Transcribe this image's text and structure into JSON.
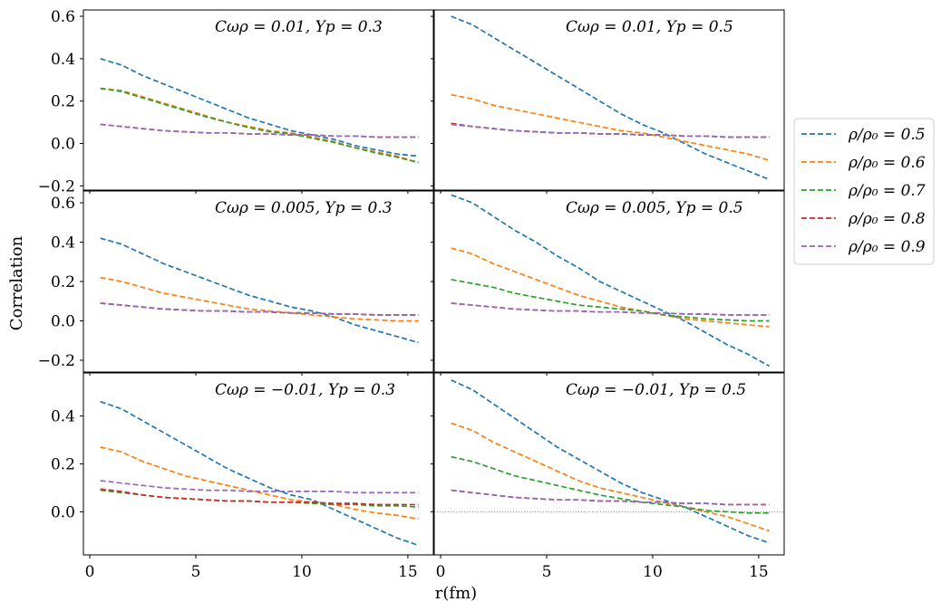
{
  "chart_data": {
    "type": "line",
    "grid_layout": "3 rows x 2 columns, shared axes",
    "xlabel": "r(fm)",
    "ylabel": "Correlation",
    "xlim": [
      -0.3,
      16.2
    ],
    "xticks": [
      0,
      5,
      10,
      15
    ],
    "legend": {
      "placement": "right",
      "entries": [
        {
          "label": "ρ/ρ₀ = 0.5",
          "color": "#1f77b4"
        },
        {
          "label": "ρ/ρ₀ = 0.6",
          "color": "#ff7f0e"
        },
        {
          "label": "ρ/ρ₀ = 0.7",
          "color": "#2ca02c"
        },
        {
          "label": "ρ/ρ₀ = 0.8",
          "color": "#d62728"
        },
        {
          "label": "ρ/ρ₀ = 0.9",
          "color": "#9467bd"
        }
      ]
    },
    "x": [
      0.5,
      1.5,
      2.5,
      3.5,
      4.5,
      5.5,
      6.5,
      7.5,
      8.5,
      9.5,
      10.5,
      11.5,
      12.5,
      13.5,
      14.5,
      15.5
    ],
    "panels": [
      {
        "annotation": "Cωρ = 0.01, Yp = 0.3",
        "ylim": [
          -0.22,
          0.63
        ],
        "yticks": [
          -0.2,
          0.0,
          0.2,
          0.4,
          0.6
        ],
        "series": [
          {
            "name": "ρ/ρ₀ = 0.5",
            "values": [
              0.4,
              0.37,
              0.32,
              0.28,
              0.24,
              0.2,
              0.16,
              0.12,
              0.09,
              0.06,
              0.04,
              0.02,
              -0.01,
              -0.03,
              -0.05,
              -0.06
            ]
          },
          {
            "name": "ρ/ρ₀ = 0.6",
            "values": [
              0.26,
              0.25,
              0.22,
              0.19,
              0.16,
              0.13,
              0.1,
              0.08,
              0.06,
              0.05,
              0.03,
              0.01,
              -0.02,
              -0.04,
              -0.06,
              -0.09
            ]
          },
          {
            "name": "ρ/ρ₀ = 0.7",
            "values": [
              0.26,
              0.245,
              0.215,
              0.185,
              0.155,
              0.125,
              0.1,
              0.075,
              0.055,
              0.045,
              0.025,
              0.005,
              -0.02,
              -0.045,
              -0.065,
              -0.09
            ]
          },
          {
            "name": "ρ/ρ₀ = 0.8",
            "values": [
              0.09,
              0.08,
              0.07,
              0.06,
              0.055,
              0.05,
              0.05,
              0.045,
              0.045,
              0.04,
              0.04,
              0.035,
              0.035,
              0.03,
              0.03,
              0.03
            ]
          },
          {
            "name": "ρ/ρ₀ = 0.9",
            "values": [
              0.09,
              0.08,
              0.07,
              0.06,
              0.055,
              0.05,
              0.05,
              0.045,
              0.045,
              0.04,
              0.04,
              0.035,
              0.035,
              0.03,
              0.03,
              0.03
            ]
          }
        ]
      },
      {
        "annotation": "Cωρ = 0.01, Yp = 0.5",
        "ylim": [
          -0.22,
          0.63
        ],
        "yticks": [
          -0.2,
          0.0,
          0.2,
          0.4,
          0.6
        ],
        "series": [
          {
            "name": "ρ/ρ₀ = 0.5",
            "values": [
              0.6,
              0.56,
              0.5,
              0.44,
              0.38,
              0.32,
              0.26,
              0.2,
              0.14,
              0.09,
              0.05,
              0.0,
              -0.05,
              -0.09,
              -0.13,
              -0.17
            ]
          },
          {
            "name": "ρ/ρ₀ = 0.6",
            "values": [
              0.23,
              0.21,
              0.18,
              0.16,
              0.14,
              0.12,
              0.1,
              0.08,
              0.06,
              0.05,
              0.03,
              0.01,
              -0.01,
              -0.03,
              -0.05,
              -0.08
            ]
          },
          {
            "name": "ρ/ρ₀ = 0.7",
            "values": [
              0.09,
              0.08,
              0.07,
              0.06,
              0.055,
              0.05,
              0.05,
              0.045,
              0.045,
              0.04,
              0.04,
              0.035,
              0.035,
              0.03,
              0.03,
              0.03
            ]
          },
          {
            "name": "ρ/ρ₀ = 0.8",
            "values": [
              0.095,
              0.08,
              0.07,
              0.06,
              0.055,
              0.05,
              0.05,
              0.045,
              0.045,
              0.04,
              0.04,
              0.035,
              0.035,
              0.03,
              0.03,
              0.03
            ]
          },
          {
            "name": "ρ/ρ₀ = 0.9",
            "values": [
              0.09,
              0.08,
              0.07,
              0.06,
              0.055,
              0.05,
              0.05,
              0.045,
              0.045,
              0.04,
              0.04,
              0.035,
              0.035,
              0.03,
              0.03,
              0.03
            ]
          }
        ]
      },
      {
        "annotation": "Cωρ = 0.005, Yp = 0.3",
        "ylim": [
          -0.26,
          0.66
        ],
        "yticks": [
          -0.2,
          0.0,
          0.2,
          0.4,
          0.6
        ],
        "series": [
          {
            "name": "ρ/ρ₀ = 0.5",
            "values": [
              0.42,
              0.39,
              0.34,
              0.29,
              0.25,
              0.21,
              0.17,
              0.13,
              0.1,
              0.07,
              0.05,
              0.02,
              -0.02,
              -0.05,
              -0.08,
              -0.11
            ]
          },
          {
            "name": "ρ/ρ₀ = 0.6",
            "values": [
              0.22,
              0.2,
              0.17,
              0.14,
              0.12,
              0.1,
              0.08,
              0.06,
              0.05,
              0.04,
              0.03,
              0.02,
              0.01,
              0.005,
              0.0,
              0.0
            ]
          },
          {
            "name": "ρ/ρ₀ = 0.7",
            "values": [
              0.09,
              0.08,
              0.07,
              0.06,
              0.055,
              0.05,
              0.05,
              0.045,
              0.045,
              0.04,
              0.04,
              0.035,
              0.035,
              0.03,
              0.03,
              0.03
            ]
          },
          {
            "name": "ρ/ρ₀ = 0.8",
            "values": [
              0.09,
              0.08,
              0.07,
              0.06,
              0.055,
              0.05,
              0.05,
              0.045,
              0.045,
              0.04,
              0.04,
              0.035,
              0.035,
              0.03,
              0.03,
              0.03
            ]
          },
          {
            "name": "ρ/ρ₀ = 0.9",
            "values": [
              0.09,
              0.08,
              0.07,
              0.06,
              0.055,
              0.05,
              0.05,
              0.045,
              0.045,
              0.04,
              0.04,
              0.035,
              0.035,
              0.03,
              0.03,
              0.03
            ]
          }
        ]
      },
      {
        "annotation": "Cωρ = 0.005, Yp = 0.5",
        "ylim": [
          -0.26,
          0.66
        ],
        "yticks": [
          -0.2,
          0.0,
          0.2,
          0.4,
          0.6
        ],
        "series": [
          {
            "name": "ρ/ρ₀ = 0.5",
            "values": [
              0.64,
              0.6,
              0.53,
              0.46,
              0.4,
              0.33,
              0.27,
              0.2,
              0.15,
              0.1,
              0.05,
              0.0,
              -0.06,
              -0.12,
              -0.17,
              -0.23
            ]
          },
          {
            "name": "ρ/ρ₀ = 0.6",
            "values": [
              0.37,
              0.34,
              0.29,
              0.25,
              0.21,
              0.17,
              0.13,
              0.1,
              0.07,
              0.05,
              0.03,
              0.01,
              0.0,
              -0.01,
              -0.02,
              -0.03
            ]
          },
          {
            "name": "ρ/ρ₀ = 0.7",
            "values": [
              0.21,
              0.19,
              0.17,
              0.14,
              0.12,
              0.1,
              0.08,
              0.07,
              0.06,
              0.05,
              0.03,
              0.02,
              0.01,
              0.005,
              0.0,
              0.0
            ]
          },
          {
            "name": "ρ/ρ₀ = 0.8",
            "values": [
              0.09,
              0.08,
              0.07,
              0.06,
              0.055,
              0.05,
              0.05,
              0.045,
              0.045,
              0.04,
              0.04,
              0.035,
              0.035,
              0.03,
              0.03,
              0.03
            ]
          },
          {
            "name": "ρ/ρ₀ = 0.9",
            "values": [
              0.09,
              0.08,
              0.07,
              0.06,
              0.055,
              0.05,
              0.05,
              0.045,
              0.045,
              0.04,
              0.04,
              0.035,
              0.035,
              0.03,
              0.03,
              0.03
            ]
          }
        ]
      },
      {
        "annotation": "Cωρ = −0.01, Yp = 0.3",
        "ylim": [
          -0.18,
          0.58
        ],
        "yticks": [
          0.0,
          0.2,
          0.4
        ],
        "series": [
          {
            "name": "ρ/ρ₀ = 0.5",
            "values": [
              0.46,
              0.43,
              0.38,
              0.33,
              0.28,
              0.23,
              0.18,
              0.14,
              0.1,
              0.07,
              0.05,
              0.01,
              -0.03,
              -0.07,
              -0.11,
              -0.14
            ]
          },
          {
            "name": "ρ/ρ₀ = 0.6",
            "values": [
              0.27,
              0.25,
              0.21,
              0.18,
              0.15,
              0.13,
              0.11,
              0.09,
              0.07,
              0.05,
              0.04,
              0.03,
              0.01,
              -0.005,
              -0.015,
              -0.03
            ]
          },
          {
            "name": "ρ/ρ₀ = 0.7",
            "values": [
              0.09,
              0.08,
              0.07,
              0.06,
              0.055,
              0.05,
              0.045,
              0.045,
              0.04,
              0.04,
              0.035,
              0.03,
              0.03,
              0.025,
              0.025,
              0.02
            ]
          },
          {
            "name": "ρ/ρ₀ = 0.8",
            "values": [
              0.095,
              0.085,
              0.07,
              0.06,
              0.055,
              0.05,
              0.045,
              0.045,
              0.04,
              0.04,
              0.04,
              0.035,
              0.035,
              0.03,
              0.03,
              0.03
            ]
          },
          {
            "name": "ρ/ρ₀ = 0.9",
            "values": [
              0.13,
              0.12,
              0.11,
              0.1,
              0.095,
              0.09,
              0.09,
              0.085,
              0.085,
              0.085,
              0.085,
              0.085,
              0.08,
              0.08,
              0.08,
              0.08
            ]
          }
        ]
      },
      {
        "annotation": "Cωρ = −0.01, Yp = 0.5",
        "ylim": [
          -0.18,
          0.58
        ],
        "yticks": [
          0.0,
          0.2,
          0.4
        ],
        "series": [
          {
            "name": "ρ/ρ₀ = 0.5",
            "values": [
              0.55,
              0.51,
              0.45,
              0.39,
              0.33,
              0.27,
              0.22,
              0.17,
              0.12,
              0.08,
              0.05,
              0.02,
              -0.02,
              -0.06,
              -0.1,
              -0.13
            ]
          },
          {
            "name": "ρ/ρ₀ = 0.6",
            "values": [
              0.37,
              0.34,
              0.29,
              0.25,
              0.21,
              0.17,
              0.13,
              0.1,
              0.08,
              0.06,
              0.04,
              0.02,
              0.0,
              -0.02,
              -0.05,
              -0.08
            ]
          },
          {
            "name": "ρ/ρ₀ = 0.7",
            "values": [
              0.23,
              0.21,
              0.18,
              0.15,
              0.13,
              0.11,
              0.09,
              0.07,
              0.055,
              0.04,
              0.03,
              0.02,
              0.005,
              0.0,
              -0.005,
              -0.005
            ]
          },
          {
            "name": "ρ/ρ₀ = 0.8",
            "values": [
              0.09,
              0.08,
              0.07,
              0.06,
              0.055,
              0.05,
              0.05,
              0.045,
              0.045,
              0.04,
              0.04,
              0.035,
              0.035,
              0.03,
              0.03,
              0.03
            ]
          },
          {
            "name": "ρ/ρ₀ = 0.9",
            "values": [
              0.09,
              0.08,
              0.07,
              0.06,
              0.055,
              0.05,
              0.05,
              0.045,
              0.045,
              0.04,
              0.04,
              0.035,
              0.035,
              0.03,
              0.03,
              0.03
            ]
          }
        ]
      }
    ],
    "reference_line": {
      "panel": 5,
      "y": 0.0,
      "color": "#1f77b4",
      "style": "dotted"
    }
  }
}
